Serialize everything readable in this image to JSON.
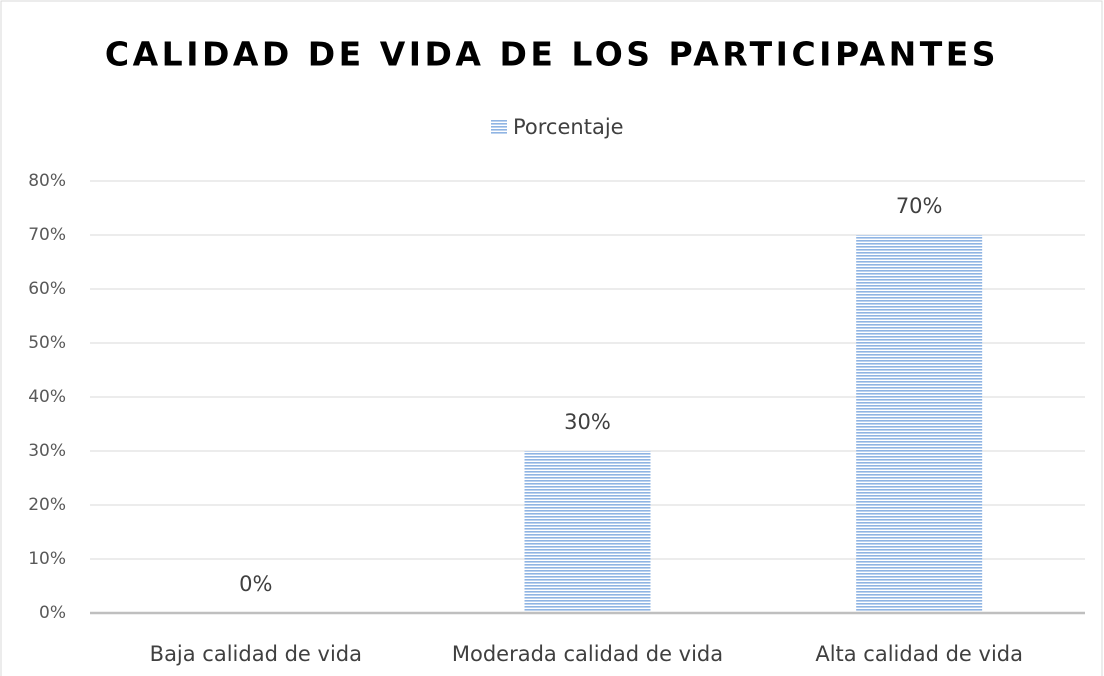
{
  "chart_data": {
    "type": "bar",
    "title": "CALIDAD DE VIDA DE LOS PARTICIPANTES",
    "categories": [
      "Baja calidad de vida",
      "Moderada calidad de vida",
      "Alta calidad de vida"
    ],
    "series": [
      {
        "name": "Porcentaje",
        "color": "#8fb4e3",
        "values": [
          0,
          30,
          70
        ],
        "value_labels": [
          "0%",
          "30%",
          "70%"
        ]
      }
    ],
    "ylim": [
      0,
      80
    ],
    "yticks": [
      {
        "value": 0,
        "label": "0%"
      },
      {
        "value": 10,
        "label": "10%"
      },
      {
        "value": 20,
        "label": "20%"
      },
      {
        "value": 30,
        "label": "30%"
      },
      {
        "value": 40,
        "label": "40%"
      },
      {
        "value": 50,
        "label": "50%"
      },
      {
        "value": 60,
        "label": "60%"
      },
      {
        "value": 70,
        "label": "70%"
      },
      {
        "value": 80,
        "label": "80%"
      }
    ],
    "grid": true,
    "legend": "top"
  }
}
